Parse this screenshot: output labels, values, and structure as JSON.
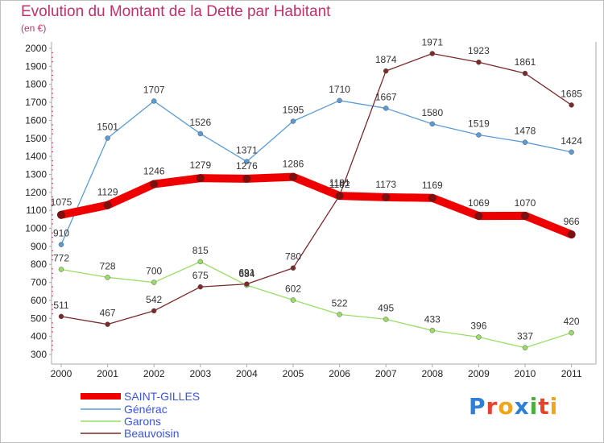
{
  "title": "Evolution du Montant de la Dette par Habitant",
  "unit_label": "(en €)",
  "logo": "Proxiti",
  "chart_data": {
    "type": "line",
    "title": "Evolution du Montant de la Dette par Habitant",
    "subtitle": "(en €)",
    "xlabel": "",
    "ylabel": "",
    "x": [
      "2000",
      "2001",
      "2002",
      "2003",
      "2004",
      "2005",
      "2006",
      "2007",
      "2008",
      "2009",
      "2010",
      "2011"
    ],
    "ylim": [
      300,
      2000
    ],
    "yticks": [
      300,
      400,
      500,
      600,
      700,
      800,
      900,
      1000,
      1100,
      1200,
      1300,
      1400,
      1500,
      1600,
      1700,
      1800,
      1900,
      2000
    ],
    "grid": false,
    "legend": "bottom-left",
    "series": [
      {
        "name": "SAINT-GILLES",
        "color": "#ee0000",
        "values": [
          1075,
          1129,
          1246,
          1279,
          1276,
          1286,
          1181,
          1173,
          1169,
          1069,
          1070,
          966
        ]
      },
      {
        "name": "Générac",
        "color": "#5b9bd5",
        "values": [
          910,
          1501,
          1707,
          1526,
          1371,
          1595,
          1710,
          1667,
          1580,
          1519,
          1478,
          1424
        ]
      },
      {
        "name": "Garons",
        "color": "#99dd66",
        "values": [
          772,
          728,
          700,
          815,
          684,
          602,
          522,
          495,
          433,
          396,
          337,
          420
        ]
      },
      {
        "name": "Beauvoisin",
        "color": "#7a2a2a",
        "values": [
          511,
          467,
          542,
          675,
          691,
          780,
          1182,
          1874,
          1971,
          1923,
          1861,
          1685
        ]
      }
    ]
  }
}
